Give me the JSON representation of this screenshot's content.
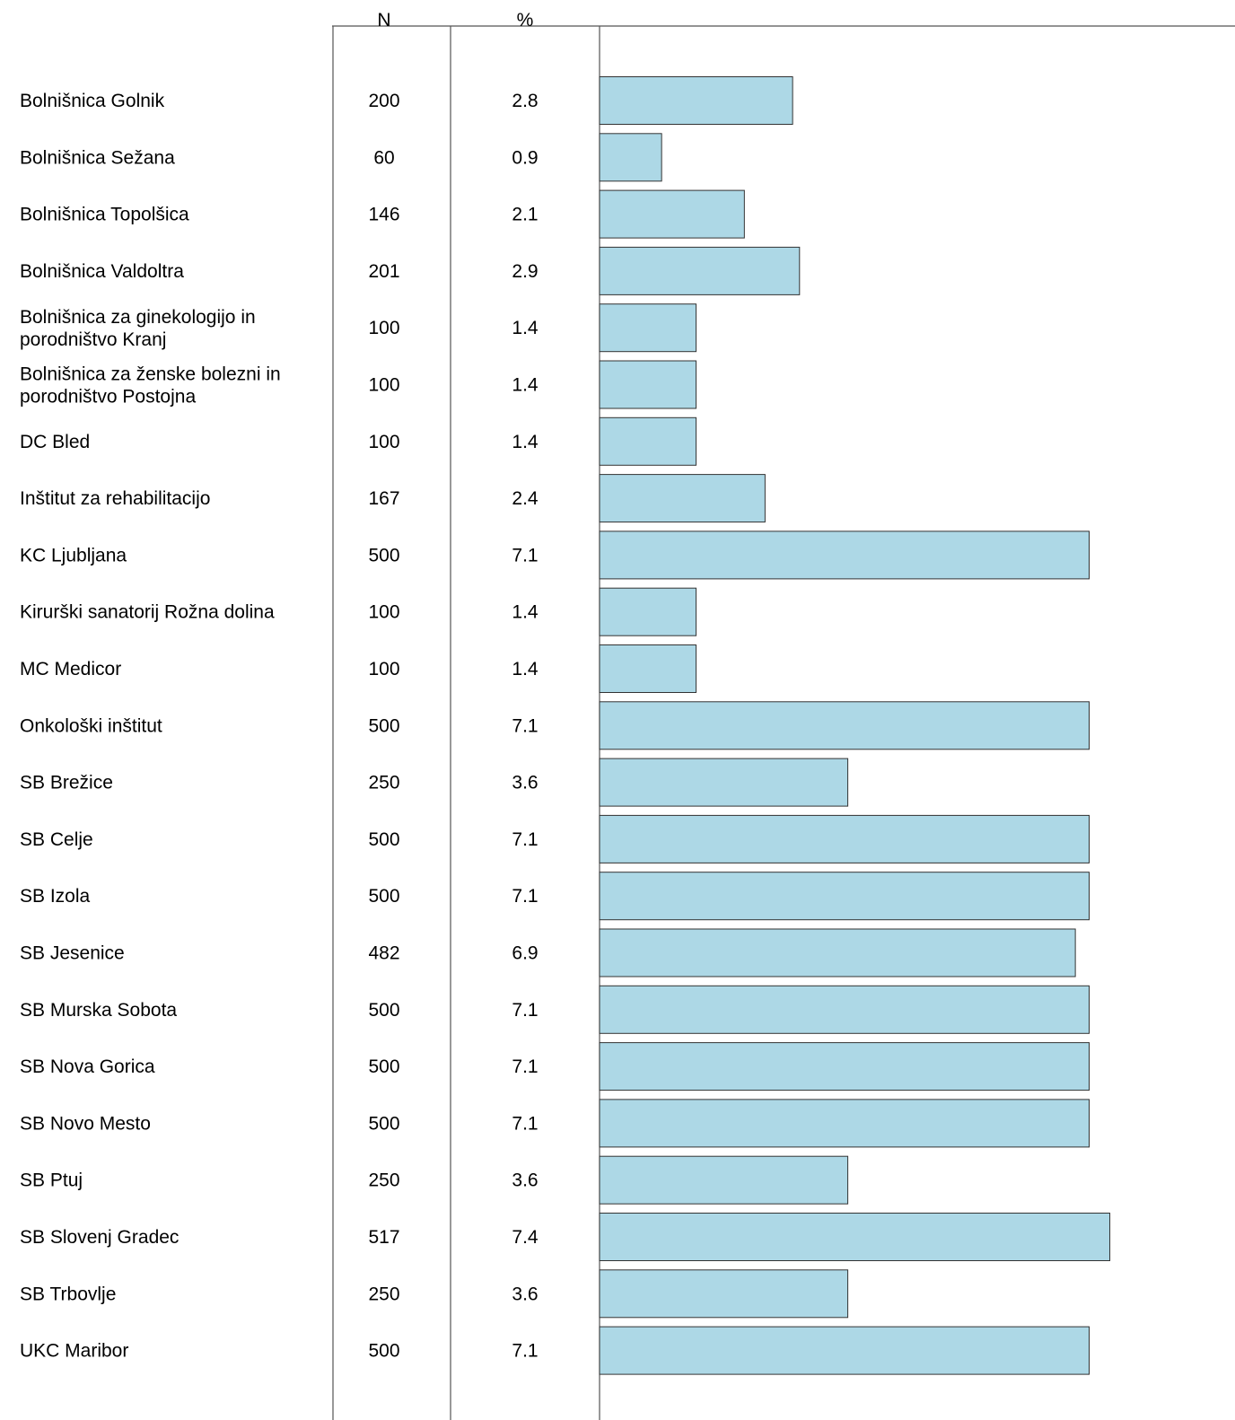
{
  "chart_data": {
    "type": "bar",
    "orientation": "horizontal",
    "columns": {
      "n_header": "N",
      "pct_header": "%"
    },
    "categories": [
      [
        "Bolnišnica  Golnik"
      ],
      [
        "Bolnišnica  Sežana"
      ],
      [
        "Bolnišnica  Topolšica"
      ],
      [
        "Bolnišnica  Valdoltra"
      ],
      [
        "Bolnišnica  za  ginekologijo  in",
        "porodništvo  Kranj"
      ],
      [
        "Bolnišnica  za  ženske  bolezni  in",
        "porodništvo  Postojna"
      ],
      [
        "DC  Bled"
      ],
      [
        "Inštitut  za  rehabilitacijo"
      ],
      [
        "KC  Ljubljana"
      ],
      [
        "Kirurški  sanatorij  Rožna  dolina"
      ],
      [
        "MC  Medicor"
      ],
      [
        "Onkološki  inštitut"
      ],
      [
        "SB  Brežice"
      ],
      [
        "SB  Celje"
      ],
      [
        "SB  Izola"
      ],
      [
        "SB  Jesenice"
      ],
      [
        "SB  Murska  Sobota"
      ],
      [
        "SB  Nova  Gorica"
      ],
      [
        "SB  Novo  Mesto"
      ],
      [
        "SB  Ptuj"
      ],
      [
        "SB  Slovenj  Gradec"
      ],
      [
        "SB  Trbovlje"
      ],
      [
        "UKC  Maribor"
      ]
    ],
    "n": [
      "200",
      "60",
      "146",
      "201",
      "100",
      "100",
      "100",
      "167",
      "500",
      "100",
      "100",
      "500",
      "250",
      "500",
      "500",
      "482",
      "500",
      "500",
      "500",
      "250",
      "517",
      "250",
      "500"
    ],
    "percent": [
      "2.8",
      "0.9",
      "2.1",
      "2.9",
      "1.4",
      "1.4",
      "1.4",
      "2.4",
      "7.1",
      "1.4",
      "1.4",
      "7.1",
      "3.6",
      "7.1",
      "7.1",
      "6.9",
      "7.1",
      "7.1",
      "7.1",
      "3.6",
      "7.4",
      "3.6",
      "7.1"
    ],
    "values": [
      2.8,
      0.9,
      2.1,
      2.9,
      1.4,
      1.4,
      1.4,
      2.4,
      7.1,
      1.4,
      1.4,
      7.1,
      3.6,
      7.1,
      7.1,
      6.9,
      7.1,
      7.1,
      7.1,
      3.6,
      7.4,
      3.6,
      7.1
    ],
    "xlim": [
      0,
      8.2
    ],
    "grid": false,
    "legend": "none",
    "bar_color": "#add8e6",
    "bar_edge_color": "#333333"
  }
}
